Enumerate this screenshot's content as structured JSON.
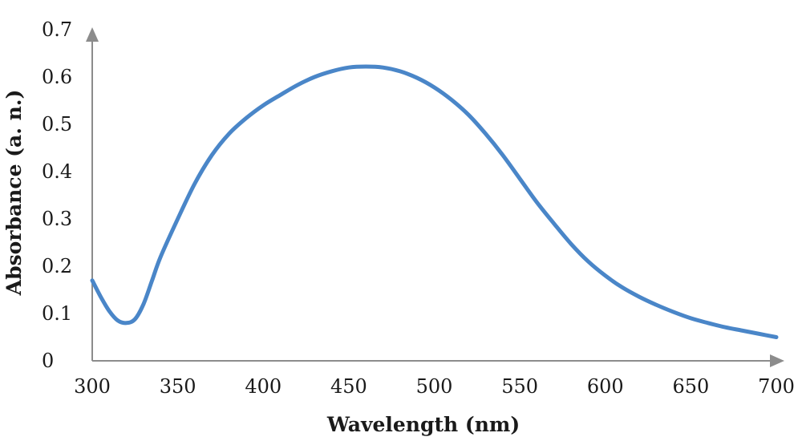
{
  "chart_data": {
    "type": "line",
    "title": "",
    "xlabel": "Wavelength (nm)",
    "ylabel": "Absorbance (a. n.)",
    "xlim": [
      300,
      700
    ],
    "ylim": [
      0,
      0.7
    ],
    "grid": false,
    "legend": "none",
    "x_ticks": [
      "300",
      "350",
      "400",
      "450",
      "500",
      "550",
      "600",
      "650",
      "700"
    ],
    "y_ticks": [
      "0",
      "0.1",
      "0.2",
      "0.3",
      "0.4",
      "0.5",
      "0.6",
      "0.7"
    ],
    "colors": {
      "line": "#4a86c8",
      "axis": "#8c8c8c"
    },
    "series": [
      {
        "x": [
          300,
          305,
          310,
          315,
          320,
          325,
          330,
          335,
          340,
          350,
          360,
          370,
          380,
          390,
          400,
          410,
          420,
          430,
          440,
          450,
          460,
          470,
          480,
          490,
          500,
          510,
          520,
          530,
          540,
          550,
          560,
          570,
          580,
          590,
          600,
          610,
          620,
          630,
          640,
          650,
          660,
          670,
          680,
          690,
          700
        ],
        "y": [
          0.17,
          0.135,
          0.105,
          0.085,
          0.08,
          0.088,
          0.12,
          0.17,
          0.22,
          0.3,
          0.375,
          0.435,
          0.48,
          0.513,
          0.54,
          0.562,
          0.583,
          0.6,
          0.612,
          0.62,
          0.622,
          0.62,
          0.612,
          0.598,
          0.578,
          0.552,
          0.52,
          0.48,
          0.435,
          0.385,
          0.335,
          0.29,
          0.247,
          0.21,
          0.18,
          0.155,
          0.135,
          0.118,
          0.103,
          0.09,
          0.08,
          0.071,
          0.064,
          0.057,
          0.05
        ]
      }
    ]
  }
}
